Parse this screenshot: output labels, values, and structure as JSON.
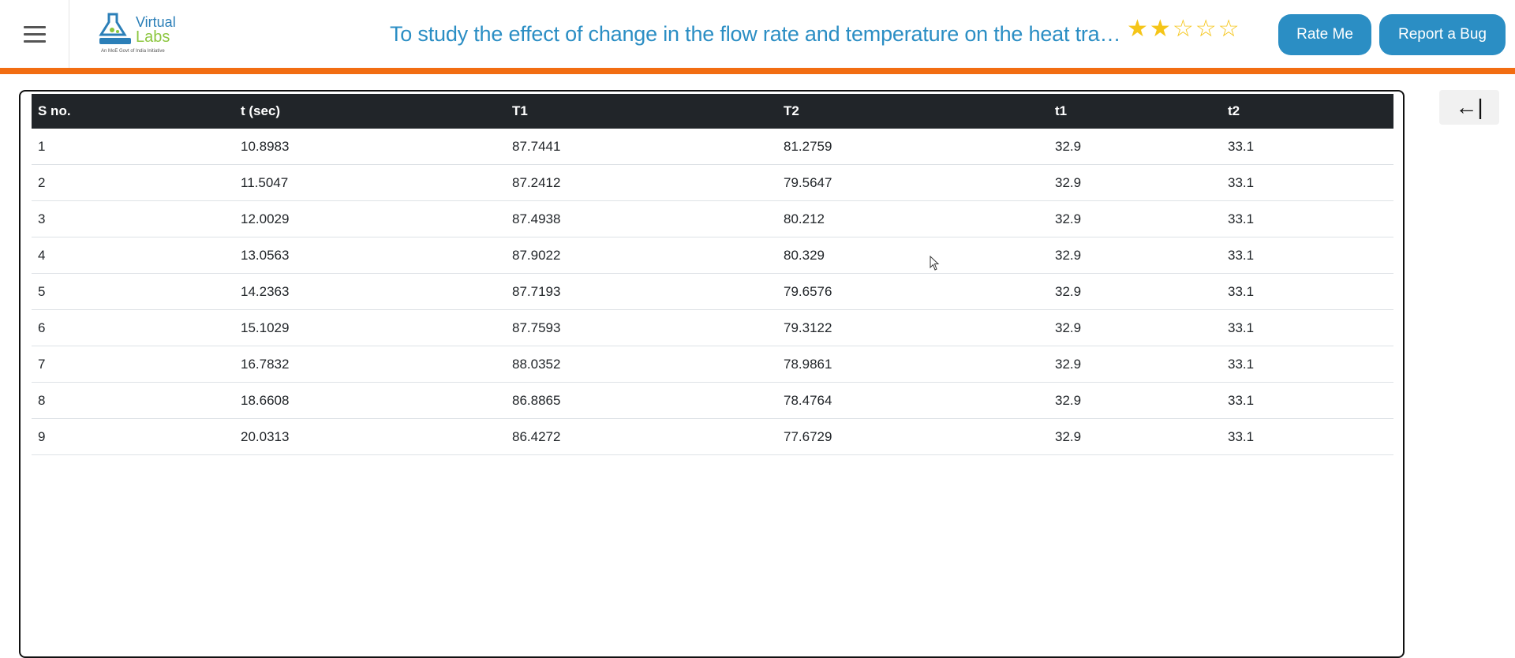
{
  "header": {
    "logo_text_line1": "Virtual",
    "logo_text_line2": "Labs",
    "logo_sub": "An MoE Govt of India Initiative",
    "title": "To study the effect of change in the flow rate and temperature on the heat transfer coefficient",
    "rating": {
      "filled": 2,
      "total": 5
    },
    "rate_button": "Rate Me",
    "bug_button": "Report a Bug"
  },
  "colors": {
    "accent": "#2b8ec4",
    "orange_bar": "#f26d12",
    "table_header": "#212529",
    "star": "#f5c518"
  },
  "icons": {
    "menu": "hamburger-icon",
    "collapse": "collapse-left-icon"
  },
  "table": {
    "headers": [
      "S no.",
      "t (sec)",
      "T1",
      "T2",
      "t1",
      "t2"
    ],
    "rows": [
      [
        "1",
        "10.8983",
        "87.7441",
        "81.2759",
        "32.9",
        "33.1"
      ],
      [
        "2",
        "11.5047",
        "87.2412",
        "79.5647",
        "32.9",
        "33.1"
      ],
      [
        "3",
        "12.0029",
        "87.4938",
        "80.212",
        "32.9",
        "33.1"
      ],
      [
        "4",
        "13.0563",
        "87.9022",
        "80.329",
        "32.9",
        "33.1"
      ],
      [
        "5",
        "14.2363",
        "87.7193",
        "79.6576",
        "32.9",
        "33.1"
      ],
      [
        "6",
        "15.1029",
        "87.7593",
        "79.3122",
        "32.9",
        "33.1"
      ],
      [
        "7",
        "16.7832",
        "88.0352",
        "78.9861",
        "32.9",
        "33.1"
      ],
      [
        "8",
        "18.6608",
        "86.8865",
        "78.4764",
        "32.9",
        "33.1"
      ],
      [
        "9",
        "20.0313",
        "86.4272",
        "77.6729",
        "32.9",
        "33.1"
      ]
    ]
  },
  "collapse_button": "←|"
}
